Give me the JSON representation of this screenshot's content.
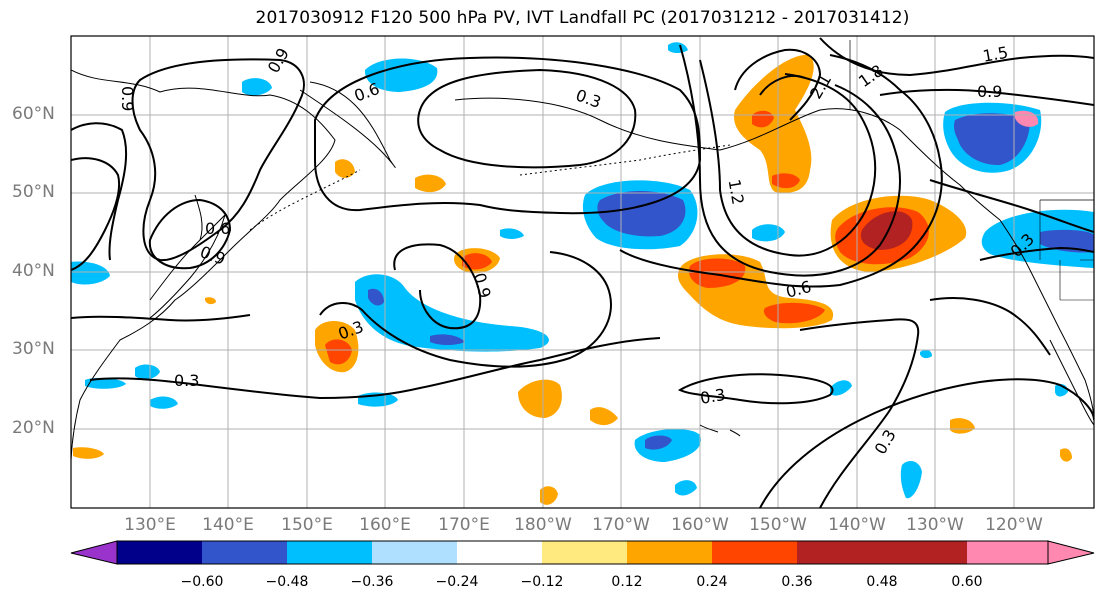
{
  "title": "2017030912 F120 500 hPa PV, IVT Landfall PC (2017031212 - 2017031412)",
  "map": {
    "lat_labels": [
      "60°N",
      "50°N",
      "40°N",
      "30°N",
      "20°N"
    ],
    "lon_labels": [
      "130°E",
      "140°E",
      "150°E",
      "160°E",
      "170°E",
      "180°W",
      "170°W",
      "160°W",
      "150°W",
      "140°W",
      "130°W",
      "120°W"
    ],
    "contour_labels": [
      "0.9",
      "0.6",
      "0.3",
      "2.1",
      "1.8",
      "1.5",
      "0.9",
      "0.9",
      "0.6",
      "0.9",
      "1.2",
      "0.6",
      "0.9",
      "0.3",
      "0.3",
      "0.3",
      "0.3",
      "0.3"
    ]
  },
  "colorbar": {
    "tick_labels": [
      "−0.60",
      "−0.48",
      "−0.36",
      "−0.24",
      "−0.12",
      "0.12",
      "0.24",
      "0.36",
      "0.48",
      "0.60"
    ],
    "colors": [
      "#9933cc",
      "#00008b",
      "#3355cc",
      "#00bfff",
      "#b0e0ff",
      "#ffffff",
      "#ffea80",
      "#ffa500",
      "#ff4500",
      "#b22222",
      "#ff88b0"
    ]
  }
}
